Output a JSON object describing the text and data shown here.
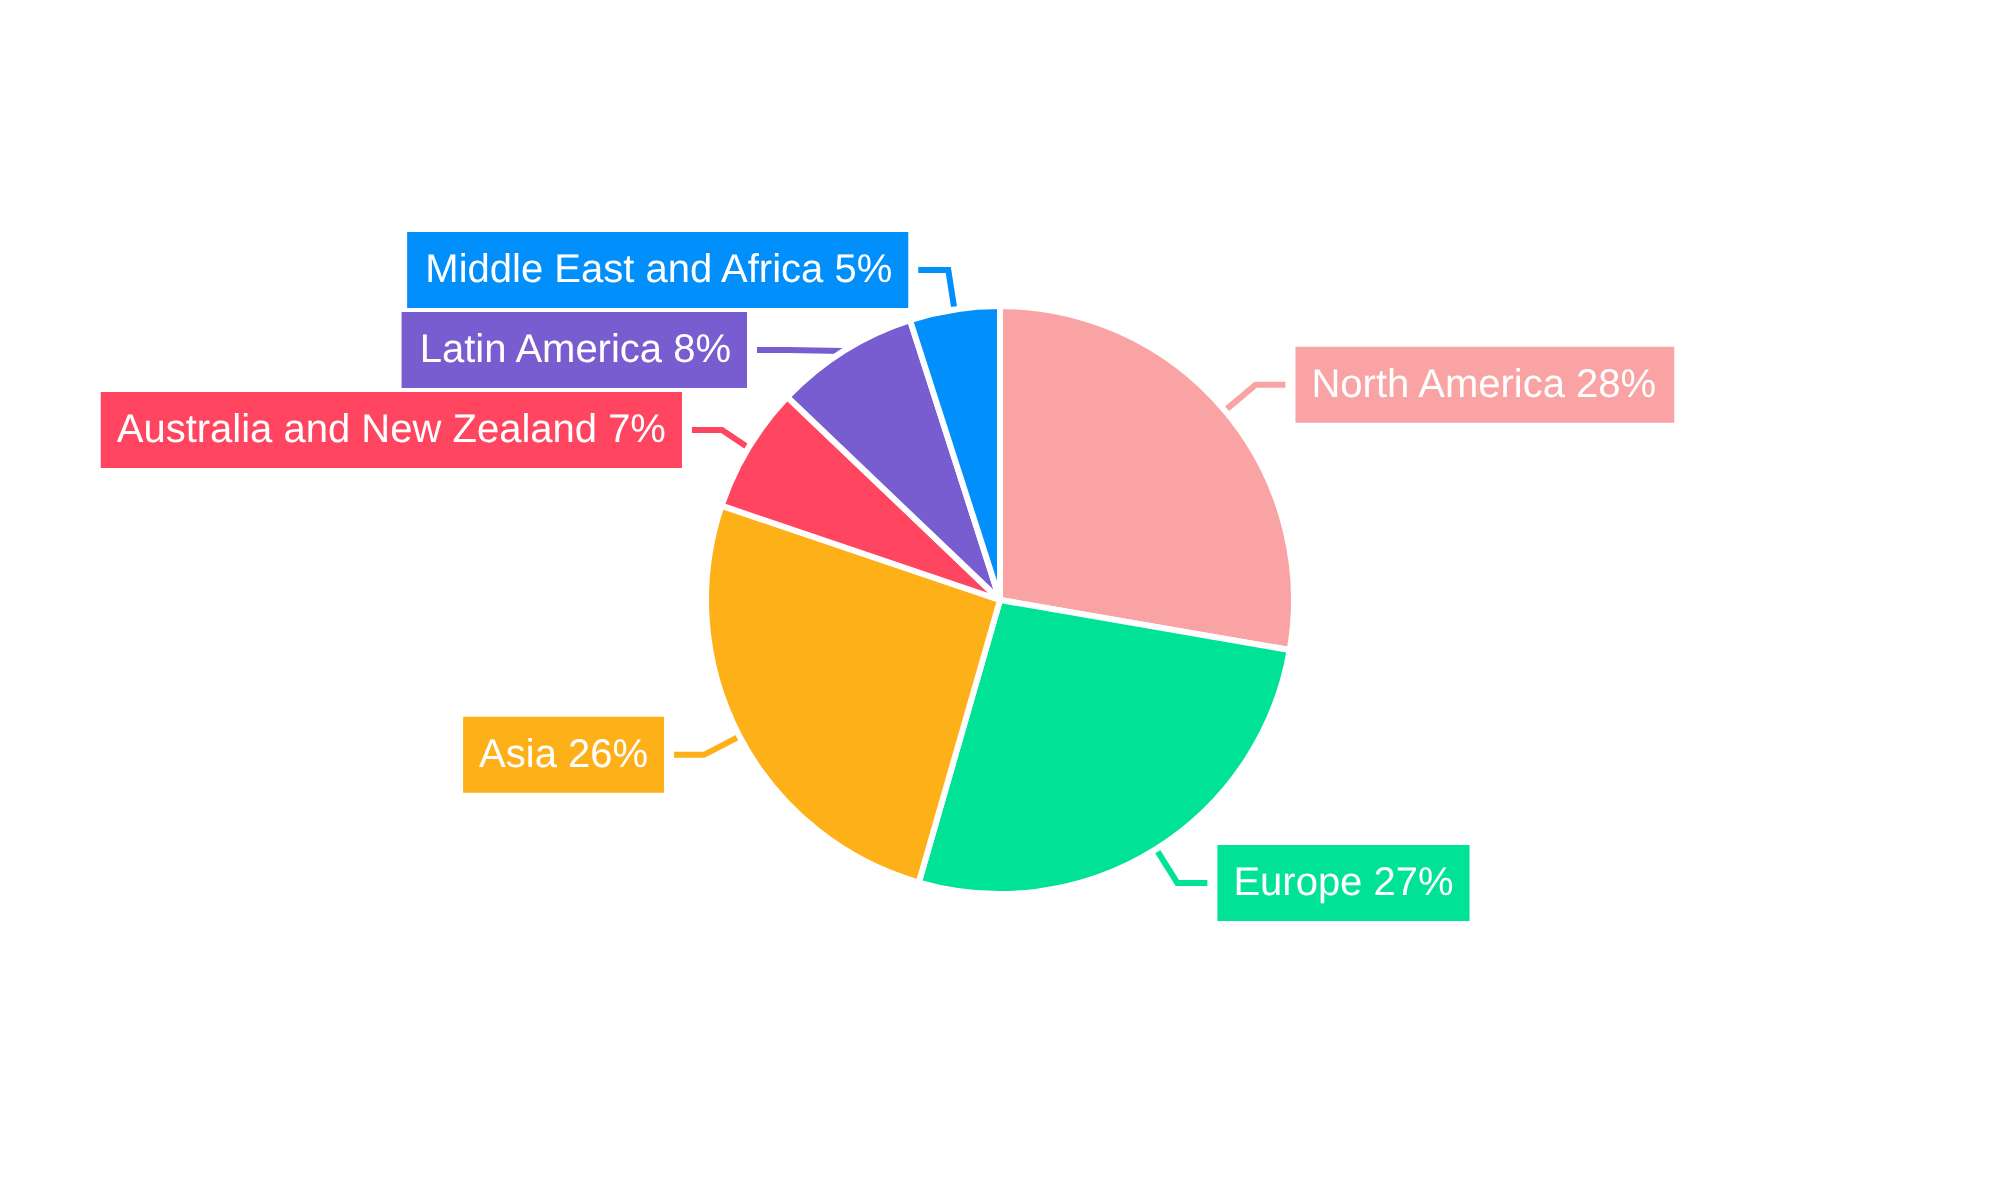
{
  "chart_data": {
    "type": "pie",
    "categories": [
      "North America",
      "Europe",
      "Asia",
      "Australia and New Zealand",
      "Latin America",
      "Middle East and Africa"
    ],
    "values": [
      28,
      27,
      26,
      7,
      8,
      5
    ],
    "value_labels": [
      "28%",
      "27%",
      "26%",
      "7%",
      "8%",
      "5%"
    ],
    "colors": [
      "#f9a3a4",
      "#00e396",
      "#feb019",
      "#ff4560",
      "#775dd0",
      "#008ffb"
    ],
    "legend": false
  }
}
